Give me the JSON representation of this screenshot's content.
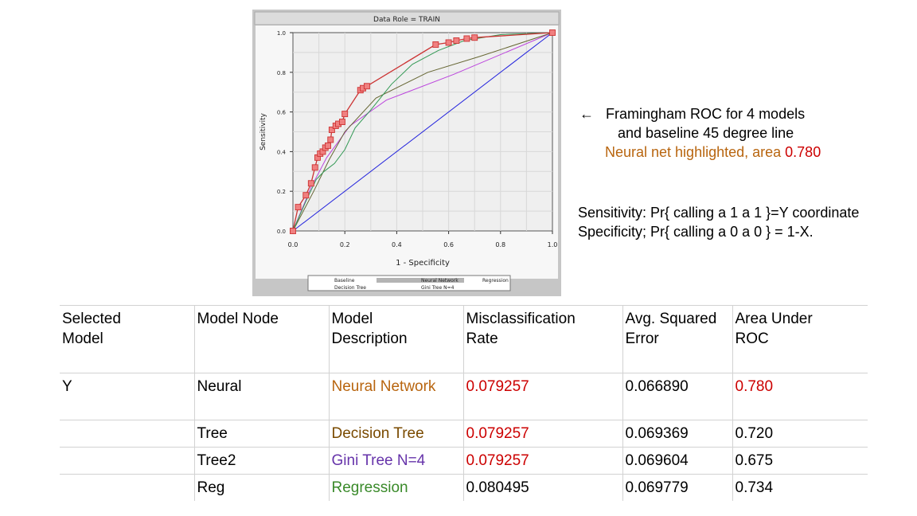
{
  "chart_data": {
    "type": "line",
    "title": "Data Role = TRAIN",
    "xlabel": "1 - Specificity",
    "ylabel": "Sensitivity",
    "xlim": [
      0,
      1
    ],
    "ylim": [
      0,
      1
    ],
    "x_ticks": [
      "0.0",
      "0.2",
      "0.4",
      "0.6",
      "0.8",
      "1.0"
    ],
    "y_ticks": [
      "0.0",
      "0.2",
      "0.4",
      "0.6",
      "0.8",
      "1.0"
    ],
    "grid": true,
    "legend_position": "bottom",
    "colors": {
      "baseline": "#2222dd",
      "neural": "#cc3333",
      "marker_fill": "#f08080",
      "tree": "#666633",
      "gini": "#bb44dd",
      "regression": "#339955"
    },
    "series": [
      {
        "name": "Baseline",
        "key": "baseline",
        "marker": false,
        "points": [
          [
            0,
            0
          ],
          [
            1,
            1
          ]
        ]
      },
      {
        "name": "Neural Network",
        "key": "neural",
        "marker": true,
        "points": [
          [
            0,
            0
          ],
          [
            0.02,
            0.12
          ],
          [
            0.05,
            0.18
          ],
          [
            0.07,
            0.24
          ],
          [
            0.085,
            0.32
          ],
          [
            0.095,
            0.37
          ],
          [
            0.105,
            0.39
          ],
          [
            0.115,
            0.4
          ],
          [
            0.125,
            0.42
          ],
          [
            0.135,
            0.43
          ],
          [
            0.145,
            0.46
          ],
          [
            0.15,
            0.51
          ],
          [
            0.165,
            0.53
          ],
          [
            0.175,
            0.54
          ],
          [
            0.19,
            0.55
          ],
          [
            0.2,
            0.59
          ],
          [
            0.26,
            0.71
          ],
          [
            0.27,
            0.72
          ],
          [
            0.285,
            0.73
          ],
          [
            0.55,
            0.94
          ],
          [
            0.6,
            0.95
          ],
          [
            0.63,
            0.96
          ],
          [
            0.67,
            0.97
          ],
          [
            0.7,
            0.975
          ],
          [
            1,
            1
          ]
        ]
      },
      {
        "name": "Decision Tree",
        "key": "tree",
        "marker": false,
        "points": [
          [
            0,
            0
          ],
          [
            0.08,
            0.2
          ],
          [
            0.14,
            0.36
          ],
          [
            0.2,
            0.5
          ],
          [
            0.32,
            0.67
          ],
          [
            0.52,
            0.8
          ],
          [
            0.72,
            0.88
          ],
          [
            1,
            1
          ]
        ]
      },
      {
        "name": "Gini Tree N=4",
        "key": "gini",
        "marker": false,
        "points": [
          [
            0,
            0
          ],
          [
            0.07,
            0.22
          ],
          [
            0.13,
            0.37
          ],
          [
            0.22,
            0.53
          ],
          [
            0.36,
            0.66
          ],
          [
            0.62,
            0.79
          ],
          [
            1,
            1
          ]
        ]
      },
      {
        "name": "Regression",
        "key": "regression",
        "marker": false,
        "points": [
          [
            0,
            0
          ],
          [
            0.05,
            0.15
          ],
          [
            0.09,
            0.26
          ],
          [
            0.12,
            0.3
          ],
          [
            0.16,
            0.34
          ],
          [
            0.2,
            0.41
          ],
          [
            0.24,
            0.52
          ],
          [
            0.3,
            0.61
          ],
          [
            0.38,
            0.74
          ],
          [
            0.46,
            0.84
          ],
          [
            0.56,
            0.91
          ],
          [
            0.66,
            0.96
          ],
          [
            0.8,
            0.99
          ],
          [
            1,
            1
          ]
        ]
      }
    ]
  },
  "caption": {
    "line1": "Framingham ROC for 4 models",
    "line2": "and baseline 45 degree line",
    "line3_text": "Neural net highlighted, area ",
    "line3_value": "0.780"
  },
  "definitions": {
    "sensitivity": "Sensitivity: Pr{ calling a 1 a 1 }=Y coordinate",
    "specificity": "Specificity; Pr{ calling a 0 a 0 } = 1-X."
  },
  "table": {
    "headers": [
      {
        "line1": "Selected",
        "line2": "Model"
      },
      {
        "line1": "Model Node",
        "line2": ""
      },
      {
        "line1": "Model",
        "line2": "Description"
      },
      {
        "line1": "Misclassification",
        "line2": "Rate"
      },
      {
        "line1": "Avg. Squared",
        "line2": "Error"
      },
      {
        "line1": "Area Under",
        "line2": "ROC"
      }
    ],
    "rows": [
      {
        "selected": "Y",
        "node": "Neural",
        "description": "Neural Network",
        "misclassification": "0.079257",
        "ase": "0.066890",
        "roc": "0.780",
        "desc_color": "#b8650f",
        "mis_color": "#cc0000",
        "roc_color": "#cc0000"
      },
      {
        "selected": "",
        "node": "Tree",
        "description": "Decision Tree",
        "misclassification": "0.079257",
        "ase": "0.069369",
        "roc": "0.720",
        "desc_color": "#7a4a00",
        "mis_color": "#cc0000",
        "roc_color": "#000000"
      },
      {
        "selected": "",
        "node": "Tree2",
        "description": "Gini Tree N=4",
        "misclassification": "0.079257",
        "ase": "0.069604",
        "roc": "0.675",
        "desc_color": "#6633aa",
        "mis_color": "#cc0000",
        "roc_color": "#000000"
      },
      {
        "selected": "",
        "node": "Reg",
        "description": "Regression",
        "misclassification": "0.080495",
        "ase": "0.069779",
        "roc": "0.734",
        "desc_color": "#3a8a2a",
        "mis_color": "#000000",
        "roc_color": "#000000"
      }
    ]
  }
}
